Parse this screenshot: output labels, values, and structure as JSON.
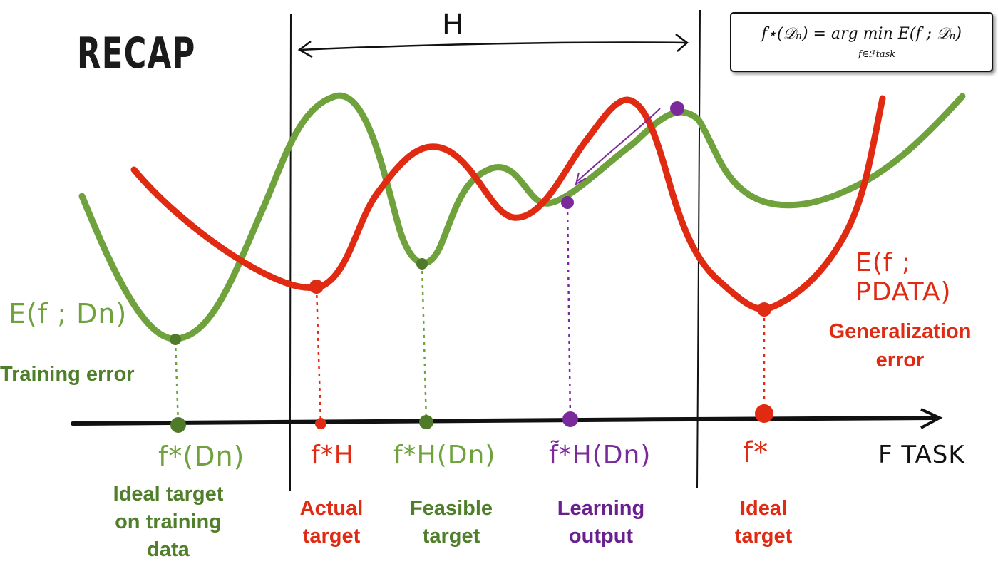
{
  "title": "RECAP",
  "formula": {
    "main": "f⋆(𝒟ₙ) = arg min E(f ; 𝒟ₙ)",
    "subscript": "f∈ℱtask"
  },
  "hypothesis_label": "H",
  "axis_label": "F TASK",
  "curve_labels": {
    "training": "E(f ; Dn)",
    "generalization": "E(f ; PDATA)"
  },
  "error_labels": {
    "training": "Training error",
    "generalization_line1": "Generalization",
    "generalization_line2": "error"
  },
  "point_symbols": {
    "ideal_training": "f*(Dn)",
    "actual": "f*H",
    "feasible": "f*H(Dn)",
    "learning": "f̃*H(Dn)",
    "ideal": "f*"
  },
  "targets": {
    "ideal_training": [
      "Ideal target",
      "on training",
      "data"
    ],
    "actual": [
      "Actual",
      "target"
    ],
    "feasible": [
      "Feasible",
      "target"
    ],
    "learning": [
      "Learning",
      "output"
    ],
    "ideal": [
      "Ideal",
      "target"
    ]
  },
  "colors": {
    "training_curve": "#6fa23c",
    "generalization_curve": "#e02a12",
    "learning": "#7b2a9c",
    "axis": "#111111",
    "green_text": "#4f7f2a"
  }
}
